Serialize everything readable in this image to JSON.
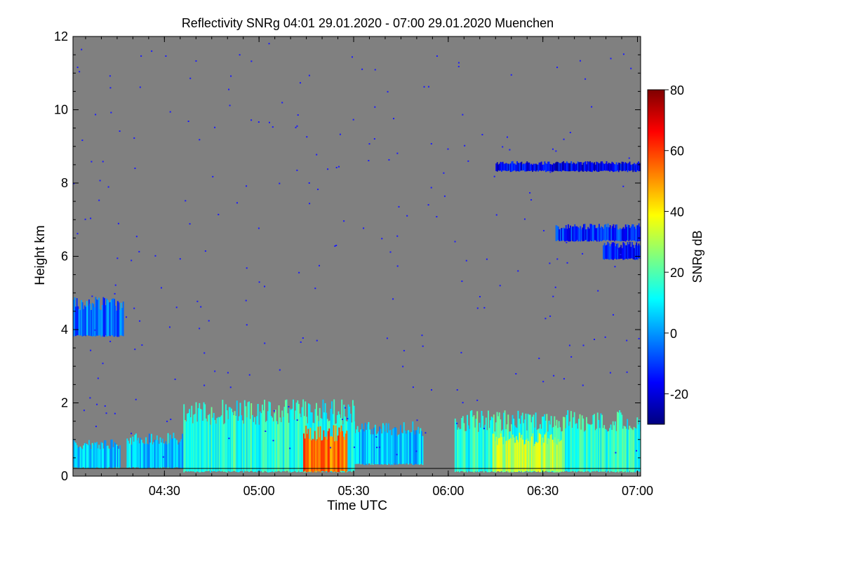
{
  "chart_data": {
    "type": "heatmap",
    "title": "Reflectivity SNRg   04:01 29.01.2020 - 07:00 29.01.2020 Muenchen",
    "xlabel": "Time UTC",
    "ylabel": "Height km",
    "xlim_minutes": [
      241,
      421
    ],
    "ylim": [
      0,
      12
    ],
    "x_ticks": [
      {
        "label": "04:30",
        "value": 270
      },
      {
        "label": "05:00",
        "value": 300
      },
      {
        "label": "05:30",
        "value": 330
      },
      {
        "label": "06:00",
        "value": 360
      },
      {
        "label": "06:30",
        "value": 390
      },
      {
        "label": "07:00",
        "value": 420
      }
    ],
    "y_ticks": [
      {
        "label": "0",
        "value": 0
      },
      {
        "label": "2",
        "value": 2
      },
      {
        "label": "4",
        "value": 4
      },
      {
        "label": "6",
        "value": 6
      },
      {
        "label": "8",
        "value": 8
      },
      {
        "label": "10",
        "value": 10
      },
      {
        "label": "12",
        "value": 12
      }
    ],
    "colorbar": {
      "label": "SNRg dB",
      "range": [
        -30,
        80
      ],
      "ticks": [
        {
          "label": "80",
          "value": 80
        },
        {
          "label": "60",
          "value": 60
        },
        {
          "label": "40",
          "value": 40
        },
        {
          "label": "20",
          "value": 20
        },
        {
          "label": "0",
          "value": 0
        },
        {
          "label": "-20",
          "value": -20
        }
      ],
      "colors": [
        "#00007f",
        "#0000ff",
        "#007fff",
        "#00ffff",
        "#7fff7f",
        "#ffff00",
        "#ff7f00",
        "#ff0000",
        "#7f0000"
      ]
    },
    "background_color": "#808080",
    "regions": [
      {
        "name": "cloud-low-left",
        "t0": 241,
        "t1": 256,
        "h0": 0.2,
        "h1": 1.0,
        "snr": 5
      },
      {
        "name": "cloud-mid-left",
        "t0": 241,
        "t1": 257,
        "h0": 3.8,
        "h1": 4.9,
        "snr": -5
      },
      {
        "name": "cloud-main-1",
        "t0": 258,
        "t1": 282,
        "h0": 0.2,
        "h1": 1.2,
        "snr": 5
      },
      {
        "name": "cloud-main-2",
        "t0": 276,
        "t1": 330,
        "h0": 0.1,
        "h1": 2.1,
        "snr": 15
      },
      {
        "name": "cloud-core",
        "t0": 314,
        "t1": 328,
        "h0": 0.1,
        "h1": 1.4,
        "snr": 55
      },
      {
        "name": "cloud-main-3",
        "t0": 330,
        "t1": 352,
        "h0": 0.3,
        "h1": 1.5,
        "snr": 5
      },
      {
        "name": "cloud-main-4",
        "t0": 362,
        "t1": 421,
        "h0": 0.1,
        "h1": 1.8,
        "snr": 15
      },
      {
        "name": "cloud-right-core",
        "t0": 374,
        "t1": 396,
        "h0": 0.1,
        "h1": 1.2,
        "snr": 32
      },
      {
        "name": "cloud-upper-right",
        "t0": 394,
        "t1": 421,
        "h0": 6.4,
        "h1": 6.9,
        "snr": -12
      },
      {
        "name": "cloud-upper-right-2",
        "t0": 409,
        "t1": 421,
        "h0": 5.9,
        "h1": 6.4,
        "snr": -15
      },
      {
        "name": "cloud-thin-8km",
        "t0": 375,
        "t1": 421,
        "h0": 8.3,
        "h1": 8.6,
        "snr": -18
      }
    ]
  }
}
